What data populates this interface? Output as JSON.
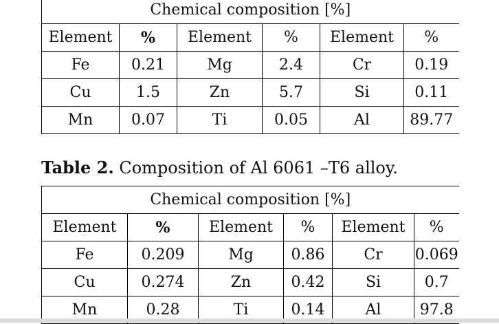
{
  "table1": {
    "title": "Chemical composition [%]",
    "headers": [
      "Element",
      "%",
      "Element",
      "%",
      "Element",
      "%"
    ],
    "rows": [
      [
        "Fe",
        "0.21",
        "Mg",
        "2.4",
        "Cr",
        "0.19"
      ],
      [
        "Cu",
        "1.5",
        "Zn",
        "5.7",
        "Si",
        "0.11"
      ],
      [
        "Mn",
        "0.07",
        "Ti",
        "0.05",
        "Al",
        "89.77"
      ]
    ]
  },
  "caption": {
    "label": "Table 2.",
    "text": " Composition of Al 6061 –T6 alloy."
  },
  "table2": {
    "title": "Chemical composition [%]",
    "headers": [
      "Element",
      "%",
      "Element",
      "%",
      "Element",
      "%"
    ],
    "rows": [
      [
        "Fe",
        "0.209",
        "Mg",
        "0.86",
        "Cr",
        "0.069"
      ],
      [
        "Cu",
        "0.274",
        "Zn",
        "0.42",
        "Si",
        "0.7"
      ],
      [
        "Mn",
        "0.28",
        "Ti",
        "0.14",
        "Al",
        "97.8"
      ]
    ]
  }
}
